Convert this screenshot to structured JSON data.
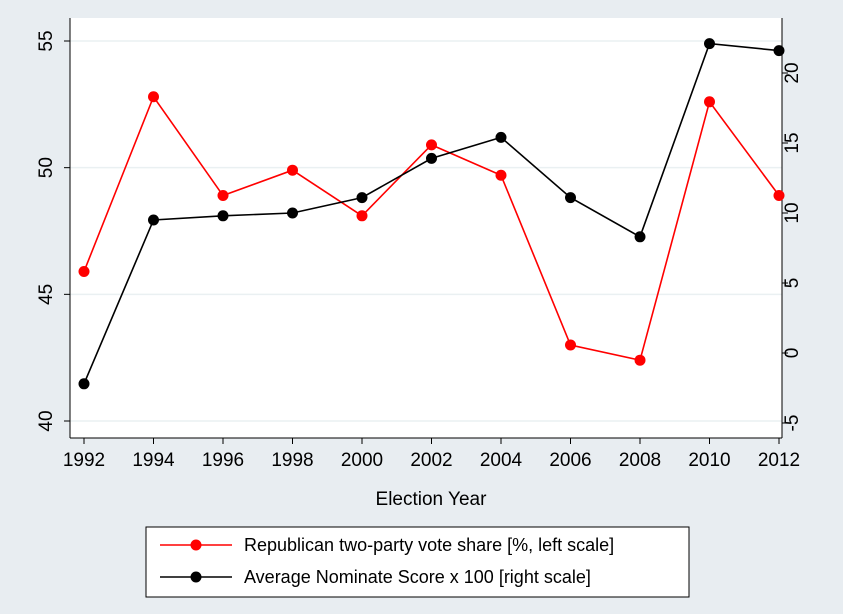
{
  "chart_data": {
    "type": "line",
    "title": "",
    "xlabel": "Election Year",
    "x": [
      1992,
      1994,
      1996,
      1998,
      2000,
      2002,
      2004,
      2006,
      2008,
      2010,
      2012
    ],
    "xlim": [
      1992,
      2012
    ],
    "xticks": [
      "1992",
      "1994",
      "1996",
      "1998",
      "2000",
      "2002",
      "2004",
      "2006",
      "2008",
      "2010",
      "2012"
    ],
    "y_left": {
      "ylim": [
        40,
        55
      ],
      "ticks": [
        "40",
        "45",
        "50",
        "55"
      ],
      "tick_values": [
        40,
        45,
        50,
        55
      ]
    },
    "y_right": {
      "ylim": [
        -5,
        22.4
      ],
      "ticks": [
        "-5",
        "0",
        "5",
        "10",
        "15",
        "20"
      ],
      "tick_values": [
        -5,
        0,
        5,
        10,
        15,
        20
      ]
    },
    "grid": true,
    "legend_position": "bottom",
    "series": [
      {
        "name": "Republican two-party vote share [%, left scale]",
        "axis": "left",
        "color": "#ff0000",
        "values": [
          45.9,
          52.8,
          48.9,
          49.9,
          48.1,
          50.9,
          49.7,
          43.0,
          42.4,
          52.6,
          48.9
        ]
      },
      {
        "name": "Average Nominate Score x 100 [right scale]",
        "axis": "right",
        "color": "#000000",
        "values": [
          -2.2,
          9.5,
          9.8,
          10.0,
          11.1,
          13.9,
          15.4,
          11.1,
          8.3,
          22.1,
          21.6
        ]
      }
    ]
  }
}
